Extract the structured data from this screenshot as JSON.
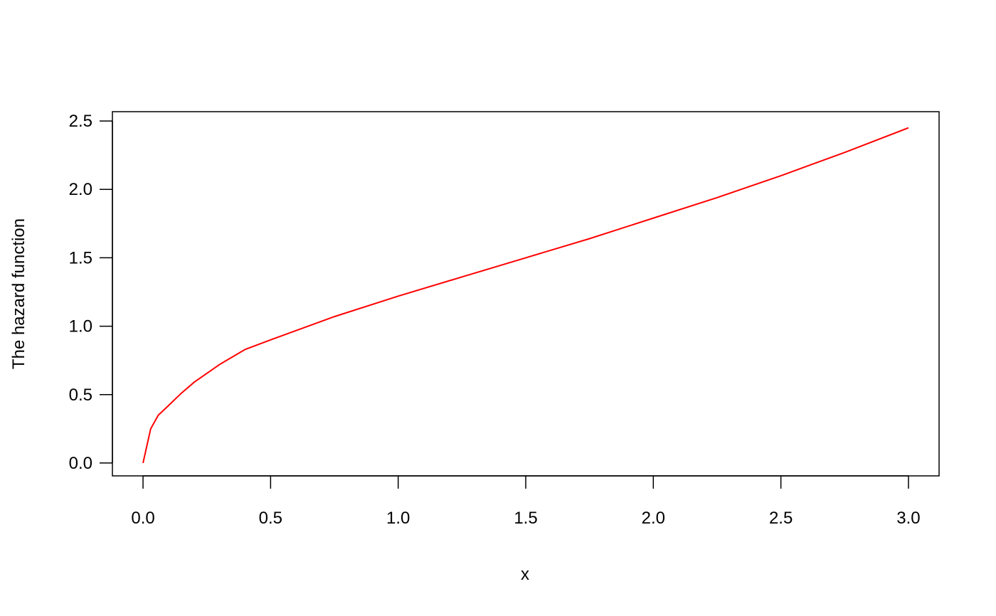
{
  "chart_data": {
    "type": "line",
    "xlabel": "x",
    "ylabel": "The hazard function",
    "x": [
      0,
      0.03,
      0.06,
      0.1,
      0.15,
      0.2,
      0.3,
      0.4,
      0.5,
      0.75,
      1,
      1.25,
      1.5,
      1.75,
      2,
      2.25,
      2.5,
      2.75,
      3
    ],
    "series": [
      {
        "name": "hazard",
        "color": "#ff0000",
        "values": [
          0,
          0.25,
          0.35,
          0.42,
          0.51,
          0.59,
          0.72,
          0.83,
          0.9,
          1.07,
          1.22,
          1.36,
          1.5,
          1.64,
          1.79,
          1.94,
          2.1,
          2.27,
          2.45
        ]
      }
    ],
    "xlim": [
      -0.12,
      3.12
    ],
    "ylim": [
      -0.094,
      2.568
    ],
    "xticks": [
      {
        "value": 0,
        "label": "0.0"
      },
      {
        "value": 0.5,
        "label": "0.5"
      },
      {
        "value": 1,
        "label": "1.0"
      },
      {
        "value": 1.5,
        "label": "1.5"
      },
      {
        "value": 2,
        "label": "2.0"
      },
      {
        "value": 2.5,
        "label": "2.5"
      },
      {
        "value": 3,
        "label": "3.0"
      }
    ],
    "yticks": [
      {
        "value": 0,
        "label": "0.0"
      },
      {
        "value": 0.5,
        "label": "0.5"
      },
      {
        "value": 1,
        "label": "1.0"
      },
      {
        "value": 1.5,
        "label": "1.5"
      },
      {
        "value": 2,
        "label": "2.0"
      },
      {
        "value": 2.5,
        "label": "2.5"
      }
    ]
  }
}
